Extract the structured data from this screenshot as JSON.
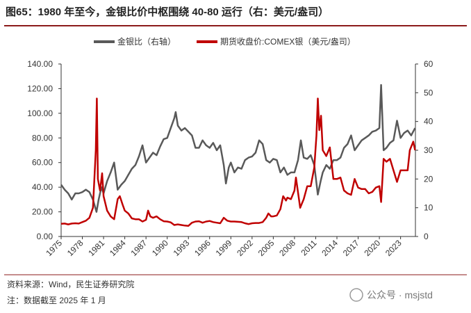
{
  "chart_data": {
    "type": "line",
    "title": "图65：1980 年至今，金银比价中枢围绕 40-80 运行（右：美元/盎司）",
    "notes": [
      "资料来源：Wind，民生证券研究院",
      "注：数据截至 2025 年 1 月"
    ],
    "watermark": "公众号 · msjstd",
    "xlim": [
      1975,
      2025.1
    ],
    "xticks": [
      1975,
      1978,
      1981,
      1984,
      1987,
      1990,
      1993,
      1996,
      1999,
      2002,
      2005,
      2008,
      2011,
      2014,
      2017,
      2020,
      2023
    ],
    "ylim": [
      0,
      140
    ],
    "yticks": [
      {
        "value": 0,
        "label": "0.00"
      },
      {
        "value": 20,
        "label": "20.00"
      },
      {
        "value": 40,
        "label": "40.00"
      },
      {
        "value": 60,
        "label": "60.00"
      },
      {
        "value": 80,
        "label": "80.00"
      },
      {
        "value": 100,
        "label": "100.00"
      },
      {
        "value": 120,
        "label": "120.00"
      },
      {
        "value": 140,
        "label": "140.00"
      }
    ],
    "y2lim": [
      0,
      60
    ],
    "y2ticks": [
      0,
      10,
      20,
      30,
      40,
      50,
      60
    ],
    "legend": "top",
    "series": [
      {
        "name": "金银比（右轴）",
        "color": "#595959",
        "x": [
          1975.0,
          1975.5,
          1976,
          1976.5,
          1977,
          1977.5,
          1978,
          1978.5,
          1979,
          1979.5,
          1980.0,
          1980.3,
          1980.7,
          1981,
          1981.5,
          1982,
          1982.5,
          1983,
          1983.5,
          1984,
          1984.5,
          1985,
          1985.5,
          1986,
          1986.5,
          1987,
          1987.5,
          1988,
          1988.5,
          1989,
          1989.5,
          1990,
          1990.5,
          1991,
          1991.2,
          1991.5,
          1992,
          1992.5,
          1993,
          1993.5,
          1994,
          1994.5,
          1995,
          1995.5,
          1996,
          1996.5,
          1997,
          1997.5,
          1998,
          1998.3,
          1998.7,
          1999,
          1999.5,
          2000,
          2000.5,
          2001,
          2001.5,
          2002,
          2002.5,
          2003,
          2003.5,
          2004,
          2004.5,
          2005,
          2005.5,
          2006,
          2006.5,
          2007,
          2007.5,
          2008,
          2008.5,
          2008.9,
          2009.3,
          2009.8,
          2010.3,
          2010.8,
          2011.3,
          2011.7,
          2012,
          2012.5,
          2013,
          2013.5,
          2014,
          2014.5,
          2015,
          2015.5,
          2016,
          2016.5,
          2017,
          2017.5,
          2018,
          2018.5,
          2019,
          2019.5,
          2020,
          2020.25,
          2020.6,
          2021,
          2021.5,
          2022,
          2022.5,
          2023,
          2023.5,
          2024,
          2024.5,
          2025.05
        ],
        "values": [
          42,
          38,
          35,
          30,
          35,
          35,
          36,
          38,
          36,
          30,
          20,
          30,
          40,
          35,
          45,
          52,
          60,
          38,
          42,
          45,
          50,
          55,
          58,
          65,
          74,
          60,
          64,
          68,
          66,
          73,
          79,
          80,
          88,
          96,
          101,
          90,
          86,
          88,
          85,
          82,
          72,
          72,
          78,
          74,
          72,
          76,
          70,
          74,
          58,
          43,
          56,
          60,
          52,
          56,
          55,
          62,
          64,
          65,
          68,
          78,
          75,
          62,
          60,
          63,
          62,
          52,
          56,
          50,
          52,
          52,
          62,
          78,
          64,
          63,
          66,
          58,
          34,
          45,
          52,
          58,
          55,
          62,
          62,
          64,
          72,
          75,
          82,
          70,
          74,
          78,
          80,
          82,
          85,
          86,
          88,
          123,
          70,
          72,
          76,
          78,
          94,
          80,
          84,
          86,
          82,
          88
        ]
      },
      {
        "name": "期货收盘价:COMEX银（美元/盎司）",
        "color": "#c00000",
        "axis": "y2",
        "x": [
          1975,
          1975.5,
          1976,
          1976.5,
          1977,
          1977.5,
          1978,
          1978.5,
          1979,
          1979.5,
          1979.9,
          1980.05,
          1980.2,
          1980.5,
          1980.8,
          1981,
          1981.5,
          1982,
          1982.5,
          1983,
          1983.3,
          1983.7,
          1984,
          1984.5,
          1985,
          1985.5,
          1986,
          1986.5,
          1987,
          1987.3,
          1987.6,
          1988,
          1988.5,
          1989,
          1989.5,
          1990,
          1990.5,
          1991,
          1991.5,
          1992,
          1992.5,
          1993,
          1993.5,
          1994,
          1994.5,
          1995,
          1995.5,
          1996,
          1996.5,
          1997,
          1997.5,
          1998,
          1998.5,
          1999,
          1999.5,
          2000,
          2000.5,
          2001,
          2001.5,
          2002,
          2002.5,
          2003,
          2003.5,
          2004,
          2004.3,
          2004.7,
          2005,
          2005.5,
          2006,
          2006.4,
          2006.8,
          2007,
          2007.5,
          2008,
          2008.2,
          2008.8,
          2009.3,
          2009.8,
          2010.3,
          2010.8,
          2011.1,
          2011.3,
          2011.5,
          2011.75,
          2012,
          2012.5,
          2013,
          2013.5,
          2014,
          2014.5,
          2015,
          2015.5,
          2016,
          2016.5,
          2017,
          2017.5,
          2018,
          2018.5,
          2019,
          2019.5,
          2020,
          2020.25,
          2020.6,
          2021,
          2021.5,
          2022,
          2022.5,
          2023,
          2023.5,
          2024,
          2024.3,
          2024.8,
          2025.05
        ],
        "values": [
          4.4,
          4.5,
          4.2,
          4.5,
          4.6,
          4.5,
          5,
          5.5,
          6.5,
          10,
          30,
          48,
          20,
          16,
          22,
          14,
          9,
          7,
          6,
          13,
          14,
          11,
          9,
          8,
          6.3,
          6,
          6,
          5.2,
          5.8,
          9,
          7,
          6.5,
          7,
          6,
          5.3,
          5.2,
          4.9,
          4,
          4.2,
          4,
          3.8,
          3.7,
          4.8,
          5.2,
          5.3,
          4.8,
          5.2,
          5.4,
          5,
          4.8,
          4.6,
          6.5,
          5.5,
          5.2,
          5.2,
          5.1,
          5,
          4.6,
          4.3,
          4.6,
          4.7,
          4.7,
          5,
          6.5,
          8,
          7,
          7,
          7.3,
          9.5,
          14,
          12.5,
          13.5,
          13,
          16,
          20.5,
          10,
          13,
          17.5,
          17.5,
          24,
          35,
          48,
          37,
          42,
          30,
          28,
          31,
          20,
          20,
          20.5,
          16,
          15,
          14.5,
          20,
          17,
          16.5,
          16.5,
          15,
          15.5,
          17,
          17.5,
          12,
          27,
          26,
          27,
          23,
          19,
          23,
          23,
          23,
          30,
          33,
          30
        ]
      }
    ]
  }
}
